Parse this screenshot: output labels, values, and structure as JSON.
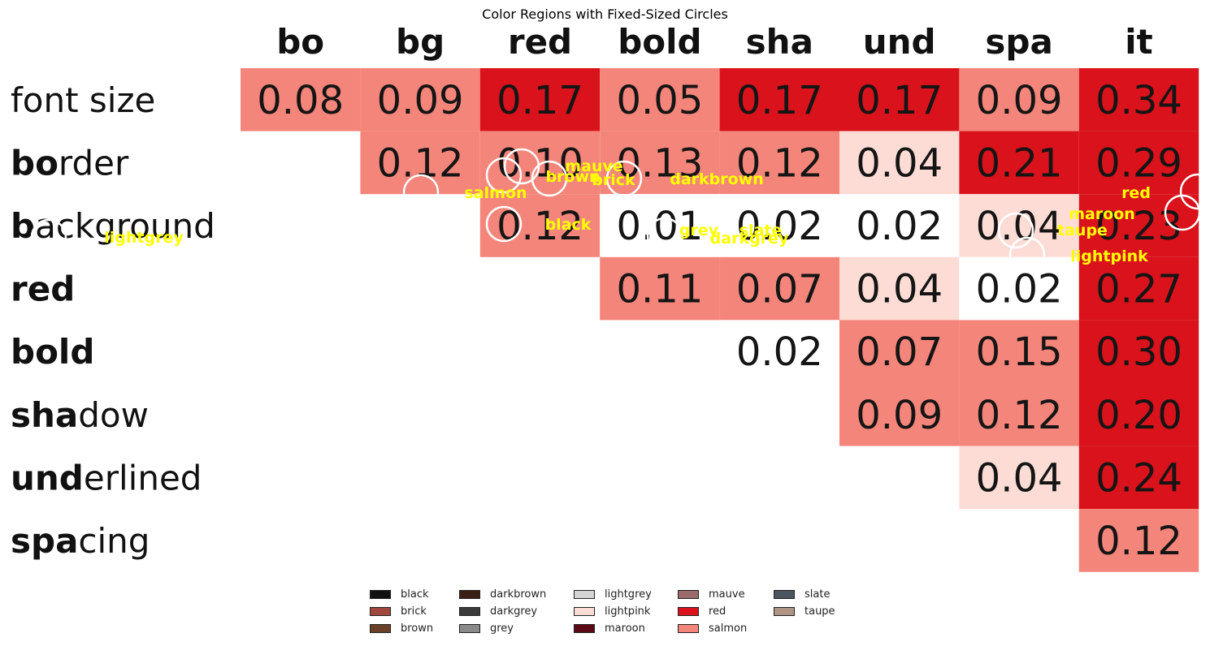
{
  "chart_data": {
    "type": "heatmap",
    "title": "Color Regions with Fixed-Sized Circles",
    "columns": [
      "bo",
      "bg",
      "red",
      "bold",
      "sha",
      "und",
      "spa",
      "it"
    ],
    "rows": [
      "font size",
      "border",
      "background",
      "red",
      "bold",
      "shadow",
      "underlined",
      "spacing"
    ],
    "row_bold_prefix": [
      "",
      "bo",
      "b",
      "red",
      "bold",
      "sha",
      "und",
      "spa"
    ],
    "row_regular_suffix": [
      "font size",
      "rder",
      "ackground",
      "",
      "",
      "dow",
      "erlined",
      "cing"
    ],
    "cells": [
      [
        "0.08",
        "0.09",
        "0.17",
        "0.05",
        "0.17",
        "0.17",
        "0.09",
        "0.34"
      ],
      [
        "",
        "0.12",
        "0.10",
        "0.13",
        "0.12",
        "0.04",
        "0.21",
        "0.29"
      ],
      [
        "",
        "",
        "0.12",
        "0.01",
        "0.02",
        "0.02",
        "0.04",
        "0.23"
      ],
      [
        "",
        "",
        "",
        "0.11",
        "0.07",
        "0.04",
        "0.02",
        "0.27"
      ],
      [
        "",
        "",
        "",
        "",
        "0.02",
        "0.07",
        "0.15",
        "0.30"
      ],
      [
        "",
        "",
        "",
        "",
        "",
        "0.09",
        "0.12",
        "0.20"
      ],
      [
        "",
        "",
        "",
        "",
        "",
        "",
        "0.04",
        "0.24"
      ],
      [
        "",
        "",
        "",
        "",
        "",
        "",
        "",
        "0.12"
      ]
    ],
    "cell_colors": {
      "salmon": "#f4857a",
      "red": "#d9121b",
      "lightpink": "#fddcd6",
      "white": "#ffffff"
    },
    "annotations": [
      "mauve",
      "brown",
      "brick",
      "darkbrown",
      "salmon",
      "red",
      "maroon",
      "taupe",
      "lightpink",
      "lightgrey",
      "black",
      "grey",
      "slate",
      "darkgrey"
    ],
    "annotation_color": "#ffff00",
    "legend_position": "bottom-center",
    "legend": [
      {
        "name": "black",
        "color": "#111111"
      },
      {
        "name": "brick",
        "color": "#a0483e"
      },
      {
        "name": "brown",
        "color": "#6b4028"
      },
      {
        "name": "darkbrown",
        "color": "#3a1f15"
      },
      {
        "name": "darkgrey",
        "color": "#3a3a3a"
      },
      {
        "name": "grey",
        "color": "#8a8a8a"
      },
      {
        "name": "lightgrey",
        "color": "#d4d4d4"
      },
      {
        "name": "lightpink",
        "color": "#fddcd6"
      },
      {
        "name": "maroon",
        "color": "#5c0a18"
      },
      {
        "name": "mauve",
        "color": "#9b6a6a"
      },
      {
        "name": "red",
        "color": "#d9121b"
      },
      {
        "name": "salmon",
        "color": "#f4857a"
      },
      {
        "name": "slate",
        "color": "#4c5660"
      },
      {
        "name": "taupe",
        "color": "#b09484"
      }
    ]
  }
}
